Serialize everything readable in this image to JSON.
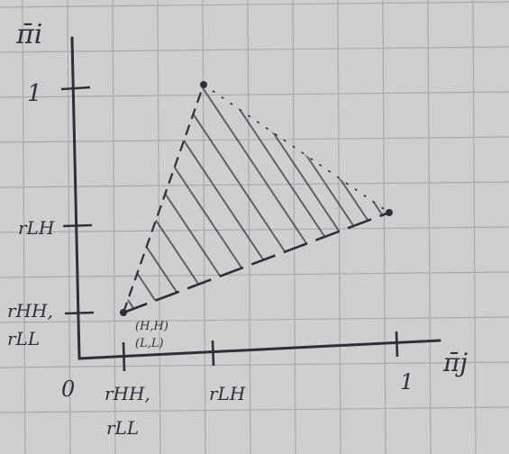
{
  "diagram": {
    "y_axis_label": "π̄i",
    "x_axis_label": "π̄j",
    "origin_label": "0",
    "x_tick_1": "rHH,",
    "x_tick_1b": "rLL",
    "x_tick_2": "rLH",
    "x_tick_3": "1",
    "y_tick_1": "1",
    "y_tick_2": "rLH",
    "y_tick_3": "rHH,",
    "y_tick_3b": "rLL",
    "point_label_1": "(H,H)",
    "point_label_2": "(L,L)",
    "colors": {
      "paper": "#cfcfd2",
      "grid": "#a9aaae",
      "ink": "#2f2f36"
    }
  }
}
